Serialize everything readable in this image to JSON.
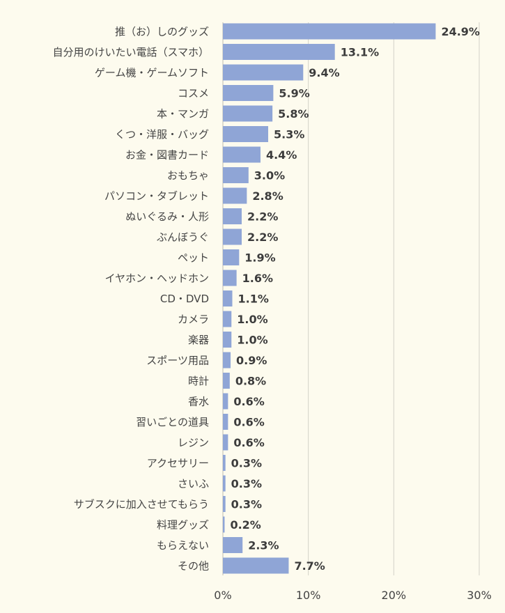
{
  "chart_data": {
    "type": "bar",
    "orientation": "horizontal",
    "categories": [
      "推（お）しのグッズ",
      "自分用のけいたい電話（スマホ）",
      "ゲーム機・ゲームソフト",
      "コスメ",
      "本・マンガ",
      "くつ・洋服・バッグ",
      "お金・図書カード",
      "おもちゃ",
      "パソコン・タブレット",
      "ぬいぐるみ・人形",
      "ぶんぼうぐ",
      "ペット",
      "イヤホン・ヘッドホン",
      "CD・DVD",
      "カメラ",
      "楽器",
      "スポーツ用品",
      "時計",
      "香水",
      "習いごとの道具",
      "レジン",
      "アクセサリー",
      "さいふ",
      "サブスクに加入させてもらう",
      "料理グッズ",
      "もらえない",
      "その他"
    ],
    "values": [
      24.9,
      13.1,
      9.4,
      5.9,
      5.8,
      5.3,
      4.4,
      3.0,
      2.8,
      2.2,
      2.2,
      1.9,
      1.6,
      1.1,
      1.0,
      1.0,
      0.9,
      0.8,
      0.6,
      0.6,
      0.6,
      0.3,
      0.3,
      0.3,
      0.2,
      2.3,
      7.7
    ],
    "value_labels": [
      "24.9%",
      "13.1%",
      "9.4%",
      "5.9%",
      "5.8%",
      "5.3%",
      "4.4%",
      "3.0%",
      "2.8%",
      "2.2%",
      "2.2%",
      "1.9%",
      "1.6%",
      "1.1%",
      "1.0%",
      "1.0%",
      "0.9%",
      "0.8%",
      "0.6%",
      "0.6%",
      "0.6%",
      "0.3%",
      "0.3%",
      "0.3%",
      "0.2%",
      "2.3%",
      "7.7%"
    ],
    "xlim": [
      0,
      30
    ],
    "x_ticks": [
      0,
      10,
      20,
      30
    ],
    "x_tick_labels": [
      "0%",
      "10%",
      "20%",
      "30%"
    ],
    "grid": true,
    "bar_color": "#8fa5d6",
    "background_color": "#fdfbee"
  }
}
